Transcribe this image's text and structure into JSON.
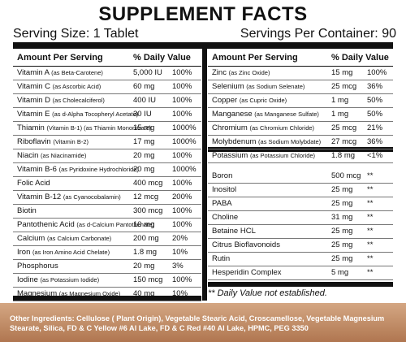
{
  "title": "SUPPLEMENT FACTS",
  "serving_size": "Serving Size: 1 Tablet",
  "servings_per_container": "Servings Per Container: 90",
  "header": {
    "amount": "Amount Per Serving",
    "daily_value": "% Daily Value"
  },
  "left_rows": [
    {
      "name": "Vitamin A",
      "detail": "(as Beta-Carotene)",
      "amount": "5,000 IU",
      "dv": "100%"
    },
    {
      "name": "Vitamin C",
      "detail": "(as Ascorbic Acid)",
      "amount": "60 mg",
      "dv": "100%"
    },
    {
      "name": "Vitamin D",
      "detail": "(as Cholecalciferol)",
      "amount": "400 IU",
      "dv": "100%"
    },
    {
      "name": "Vitamin E",
      "detail": "(as d-Alpha Tocopheryl Acetate)",
      "amount": "30 IU",
      "dv": "100%"
    },
    {
      "name": "Thiamin",
      "detail": "(Vitamin B-1) (as Thiamin Mononitrate)",
      "amount": "15 mg",
      "dv": "1000%"
    },
    {
      "name": "Riboflavin",
      "detail": "(Vitamin B-2)",
      "amount": "17 mg",
      "dv": "1000%"
    },
    {
      "name": "Niacin",
      "detail": "(as Niacinamide)",
      "amount": "20 mg",
      "dv": "100%"
    },
    {
      "name": "Vitamin B-6",
      "detail": "(as Pyridoxine Hydrochloride)",
      "amount": "20 mg",
      "dv": "1000%"
    },
    {
      "name": "Folic Acid",
      "detail": "",
      "amount": "400 mcg",
      "dv": "100%"
    },
    {
      "name": "Vitamin B-12",
      "detail": "(as Cyanocobalamin)",
      "amount": "12 mcg",
      "dv": "200%"
    },
    {
      "name": "Biotin",
      "detail": "",
      "amount": "300 mcg",
      "dv": "100%"
    },
    {
      "name": "Pantothenic Acid",
      "detail": "(as d-Calcium Pantothenate)",
      "amount": "10 mg",
      "dv": "100%"
    },
    {
      "name": "Calcium",
      "detail": "(as Calcium Carbonate)",
      "amount": "200 mg",
      "dv": "20%"
    },
    {
      "name": "Iron",
      "detail": "(as Iron Amino Acid Chelate)",
      "amount": "1.8 mg",
      "dv": "10%"
    },
    {
      "name": "Phosphorus",
      "detail": "",
      "amount": "20 mg",
      "dv": "3%"
    },
    {
      "name": "Iodine",
      "detail": "(as Potassium Iodide)",
      "amount": "150 mcg",
      "dv": "100%"
    },
    {
      "name": "Magnesium",
      "detail": "(as Magnesium Oxide)",
      "amount": "40 mg",
      "dv": "10%"
    }
  ],
  "right_rows_a": [
    {
      "name": "Zinc",
      "detail": "(as Zinc Oxide)",
      "amount": "15 mg",
      "dv": "100%"
    },
    {
      "name": "Selenium",
      "detail": "(as Sodium Selenate)",
      "amount": "25 mcg",
      "dv": "36%"
    },
    {
      "name": "Copper",
      "detail": "(as Cupric Oxide)",
      "amount": "1 mg",
      "dv": "50%"
    },
    {
      "name": "Manganese",
      "detail": "(as Manganese Sulfate)",
      "amount": "1 mg",
      "dv": "50%"
    },
    {
      "name": "Chromium",
      "detail": "(as Chromium Chloride)",
      "amount": "25 mcg",
      "dv": "21%"
    },
    {
      "name": "Molybdenum",
      "detail": "(as Sodium Molybdate)",
      "amount": "27 mcg",
      "dv": "36%"
    },
    {
      "name": "Potassium",
      "detail": "(as Potassium Chloride)",
      "amount": "1.8 mg",
      "dv": "<1%"
    }
  ],
  "right_rows_b": [
    {
      "name": "Boron",
      "detail": "",
      "amount": "500 mcg",
      "dv": "**"
    },
    {
      "name": "Inositol",
      "detail": "",
      "amount": "25 mg",
      "dv": "**"
    },
    {
      "name": "PABA",
      "detail": "",
      "amount": "25 mg",
      "dv": "**"
    },
    {
      "name": "Choline",
      "detail": "",
      "amount": "31 mg",
      "dv": "**"
    },
    {
      "name": "Betaine HCL",
      "detail": "",
      "amount": "25 mg",
      "dv": "**"
    },
    {
      "name": "Citrus Bioflavonoids",
      "detail": "",
      "amount": "25 mg",
      "dv": "**"
    },
    {
      "name": "Rutin",
      "detail": "",
      "amount": "25 mg",
      "dv": "**"
    },
    {
      "name": "Hesperidin Complex",
      "detail": "",
      "amount": "5 mg",
      "dv": "**"
    }
  ],
  "footnote": "** Daily Value not established.",
  "other_ingredients": "Other Ingredients: Cellulose ( Plant Origin), Vegetable Stearic Acid, Croscamellose, Vegetable Magnesium Stearate, Silica, FD & C Yellow #6 Al Lake, FD & C Red #40 Al Lake, HPMC, PEG 3350",
  "colors": {
    "text": "#111111",
    "footer_band": "#c08a63"
  }
}
